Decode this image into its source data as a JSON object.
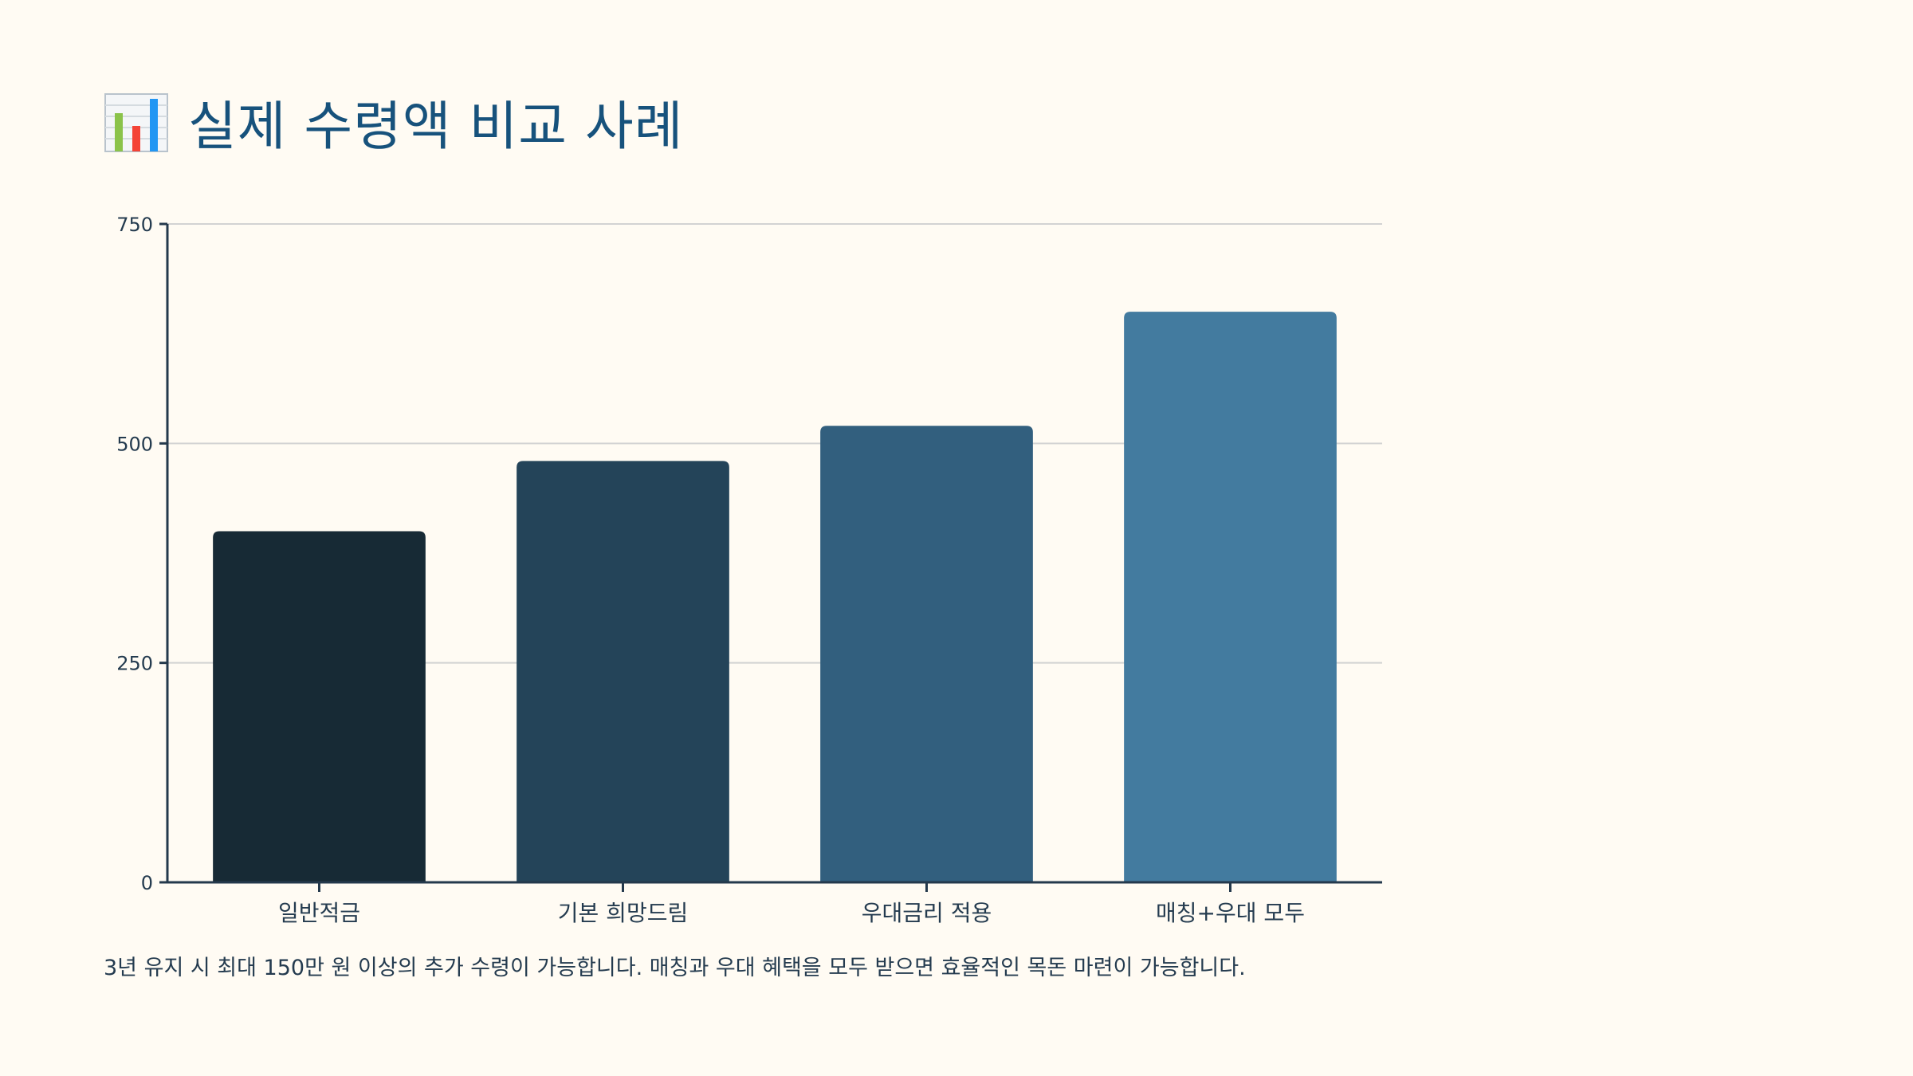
{
  "header": {
    "icon": "bar-chart-emoji-icon",
    "title": "실제 수령액 비교 사례"
  },
  "chart_data": {
    "type": "bar",
    "title": "",
    "xlabel": "",
    "ylabel": "",
    "categories": [
      "일반적금",
      "기본 희망드림",
      "우대금리 적용",
      "매칭+우대 모두"
    ],
    "values": [
      400,
      480,
      520,
      650
    ],
    "ylim": [
      0,
      750
    ],
    "yticks": [
      0,
      250,
      500,
      750
    ],
    "grid": true,
    "legend": "none",
    "colors": [
      "#172a35",
      "#244459",
      "#325f7e",
      "#437b9f"
    ]
  },
  "footnote": "3년 유지 시 최대 150만 원 이상의 추가 수령이 가능합니다. 매칭과 우대 혜택을 모두 받으면 효율적인 목돈 마련이 가능합니다."
}
